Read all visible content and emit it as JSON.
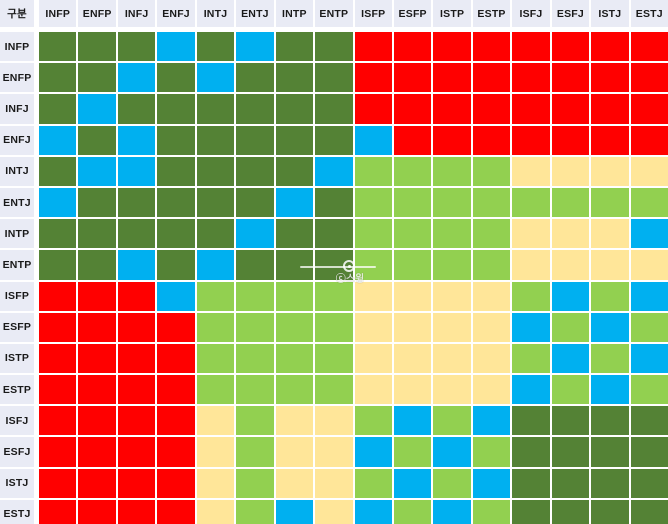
{
  "colors": {
    "dark_green": "#548235",
    "light_green": "#92D050",
    "blue": "#00B0F0",
    "red": "#FF0000",
    "cream": "#FFE699",
    "header_bg": "#E9EBF5",
    "gridline": "#FFFFFF",
    "label_text": "#1A1A1A"
  },
  "watermark": {
    "text": "ⓒ스윙"
  },
  "chart_data": {
    "type": "heatmap",
    "corner_label": "구분",
    "columns": [
      "INFP",
      "ENFP",
      "INFJ",
      "ENFJ",
      "INTJ",
      "ENTJ",
      "INTP",
      "ENTP",
      "ISFP",
      "ESFP",
      "ISTP",
      "ESTP",
      "ISFJ",
      "ESFJ",
      "ISTJ",
      "ESTJ"
    ],
    "rows": [
      "INFP",
      "ENFP",
      "INFJ",
      "ENFJ",
      "INTJ",
      "ENTJ",
      "INTP",
      "ENTP",
      "ISFP",
      "ESFP",
      "ISTP",
      "ESTP",
      "ISFJ",
      "ESFJ",
      "ISTJ",
      "ESTJ"
    ],
    "color_codes": {
      "G": "dark_green",
      "g": "light_green",
      "B": "blue",
      "R": "red",
      "Y": "cream"
    },
    "cells": [
      "GGGBGBGGRRRRRRRR",
      "GGBGBGGGRRRRRRRR",
      "GBGGGGGGRRRRRRRR",
      "BGBGGGGGBRRRRRRR",
      "GBBGGGGBggggYYYY",
      "BGGGGGBGgggggggg",
      "GGGGGBGGggggYYYB",
      "GGBGBGGGggggYYYY",
      "RRRBggggYYYYgBgB",
      "RRRRggggYYYYBgBg",
      "RRRRggggYYYYgBgB",
      "RRRRggggYYYYBgBg",
      "RRRRYgYYgBgBGGGG",
      "RRRRYgYYBgBgGGGG",
      "RRRRYgYYgBgBGGGG",
      "RRRRYgBYBgBgGGGG"
    ]
  }
}
